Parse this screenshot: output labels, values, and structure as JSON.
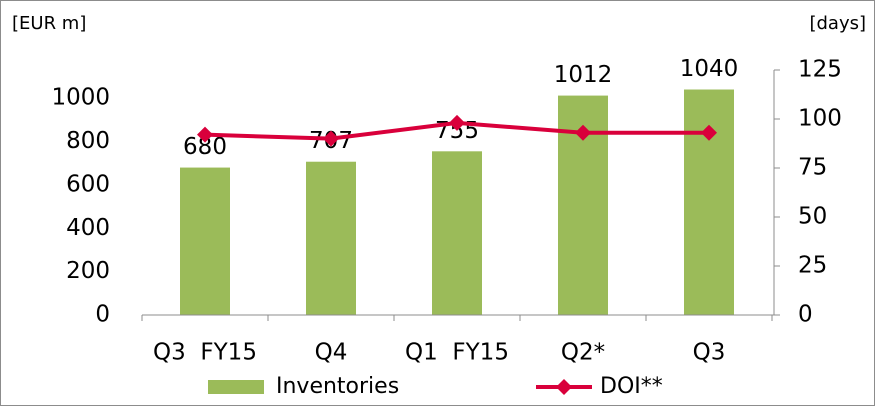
{
  "chart_data": {
    "type": "bar-line",
    "y_label": "[EUR m]",
    "y2_label": "[days]",
    "categories": [
      "Q3  FY15",
      "Q4",
      "Q1  FY15",
      "Q2*",
      "Q3"
    ],
    "series": [
      {
        "name": "Inventories",
        "type": "bar",
        "color": "#9bbb59",
        "values": [
          680,
          707,
          755,
          1012,
          1040
        ]
      },
      {
        "name": "DOI**",
        "type": "line",
        "color": "#d9003b",
        "axis": "y2",
        "values": [
          92,
          90,
          98,
          93,
          93
        ]
      }
    ],
    "ylim": [
      0,
      1130
    ],
    "yticks": [
      0,
      200,
      400,
      600,
      800,
      1000
    ],
    "y2lim": [
      0,
      125
    ],
    "y2ticks": [
      0,
      25,
      50,
      75,
      100,
      125
    ]
  }
}
